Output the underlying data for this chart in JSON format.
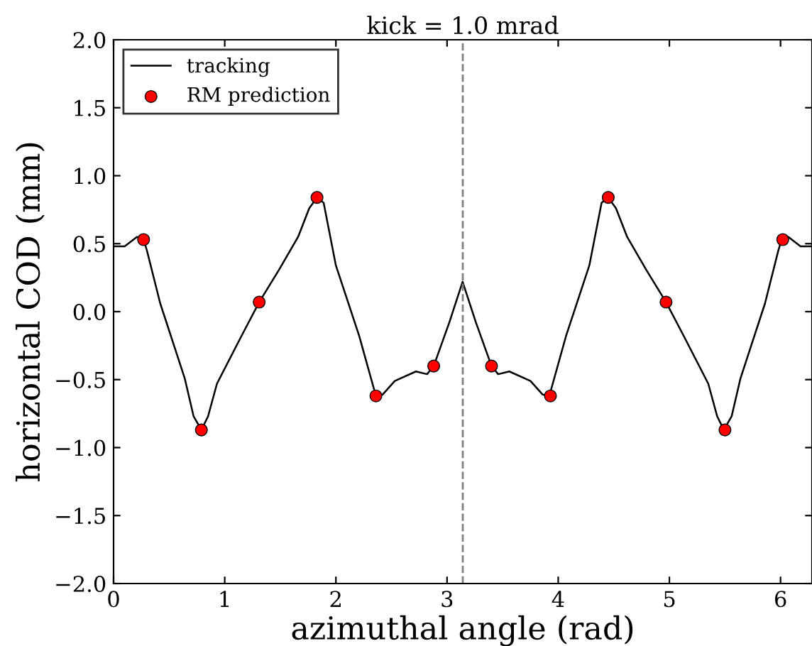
{
  "chart_data": {
    "type": "line",
    "title": "kick = 1.0 mrad",
    "xlabel": "azimuthal angle (rad)",
    "ylabel": "horizontal COD (mm)",
    "xlim": [
      0,
      6.283
    ],
    "xticks": [
      0,
      1,
      2,
      3,
      4,
      5,
      6
    ],
    "ylim": [
      -2.0,
      2.0
    ],
    "yticks": [
      {
        "value": -2.0,
        "label": "−2.0"
      },
      {
        "value": -1.5,
        "label": "−1.5"
      },
      {
        "value": -1.0,
        "label": "−1.0"
      },
      {
        "value": -0.5,
        "label": "−0.5"
      },
      {
        "value": 0.0,
        "label": "0.0"
      },
      {
        "value": 0.5,
        "label": "0.5"
      },
      {
        "value": 1.0,
        "label": "1.0"
      },
      {
        "value": 1.5,
        "label": "1.5"
      },
      {
        "value": 2.0,
        "label": "2.0"
      }
    ],
    "grid": false,
    "legend": "top left",
    "ref_lines": [
      {
        "axis": "x",
        "value": 3.1416,
        "color": "#808080",
        "line_style": "dashed"
      }
    ],
    "series": [
      {
        "name": "tracking",
        "color": "#000000",
        "marker": "none",
        "line_style": "solid",
        "x": [
          0,
          0.1,
          0.21,
          0.27,
          0.3,
          0.42,
          0.64,
          0.72,
          0.79,
          0.85,
          0.93,
          1.15,
          1.31,
          1.49,
          1.66,
          1.76,
          1.83,
          1.89,
          2.0,
          2.21,
          2.36,
          2.42,
          2.53,
          2.72,
          2.82,
          2.88,
          3.02,
          3.14,
          3.26,
          3.4,
          3.46,
          3.56,
          3.75,
          3.86,
          3.92,
          4.07,
          4.28,
          4.39,
          4.45,
          4.52,
          4.62,
          4.79,
          4.97,
          5.13,
          5.35,
          5.43,
          5.49,
          5.56,
          5.64,
          5.86,
          5.98,
          6.01,
          6.07,
          6.18,
          6.28
        ],
        "values": [
          0.48,
          0.48,
          0.55,
          0.53,
          0.45,
          0.06,
          -0.49,
          -0.77,
          -0.87,
          -0.77,
          -0.53,
          -0.18,
          0.07,
          0.31,
          0.55,
          0.76,
          0.84,
          0.8,
          0.34,
          -0.18,
          -0.62,
          -0.61,
          -0.51,
          -0.44,
          -0.46,
          -0.4,
          -0.08,
          0.22,
          -0.08,
          -0.4,
          -0.46,
          -0.44,
          -0.51,
          -0.61,
          -0.62,
          -0.18,
          0.34,
          0.8,
          0.84,
          0.76,
          0.55,
          0.31,
          0.07,
          -0.18,
          -0.53,
          -0.77,
          -0.87,
          -0.77,
          -0.49,
          0.06,
          0.45,
          0.53,
          0.55,
          0.48,
          0.48
        ]
      },
      {
        "name": "RM prediction",
        "type": "scatter",
        "color": "#ff0000",
        "marker": "circle",
        "x": [
          0.27,
          0.79,
          1.31,
          1.83,
          2.36,
          2.88,
          3.4,
          3.93,
          4.45,
          4.97,
          5.5,
          6.02
        ],
        "values": [
          0.53,
          -0.87,
          0.07,
          0.84,
          -0.62,
          -0.4,
          -0.4,
          -0.62,
          0.84,
          0.07,
          -0.87,
          0.53
        ]
      }
    ]
  }
}
